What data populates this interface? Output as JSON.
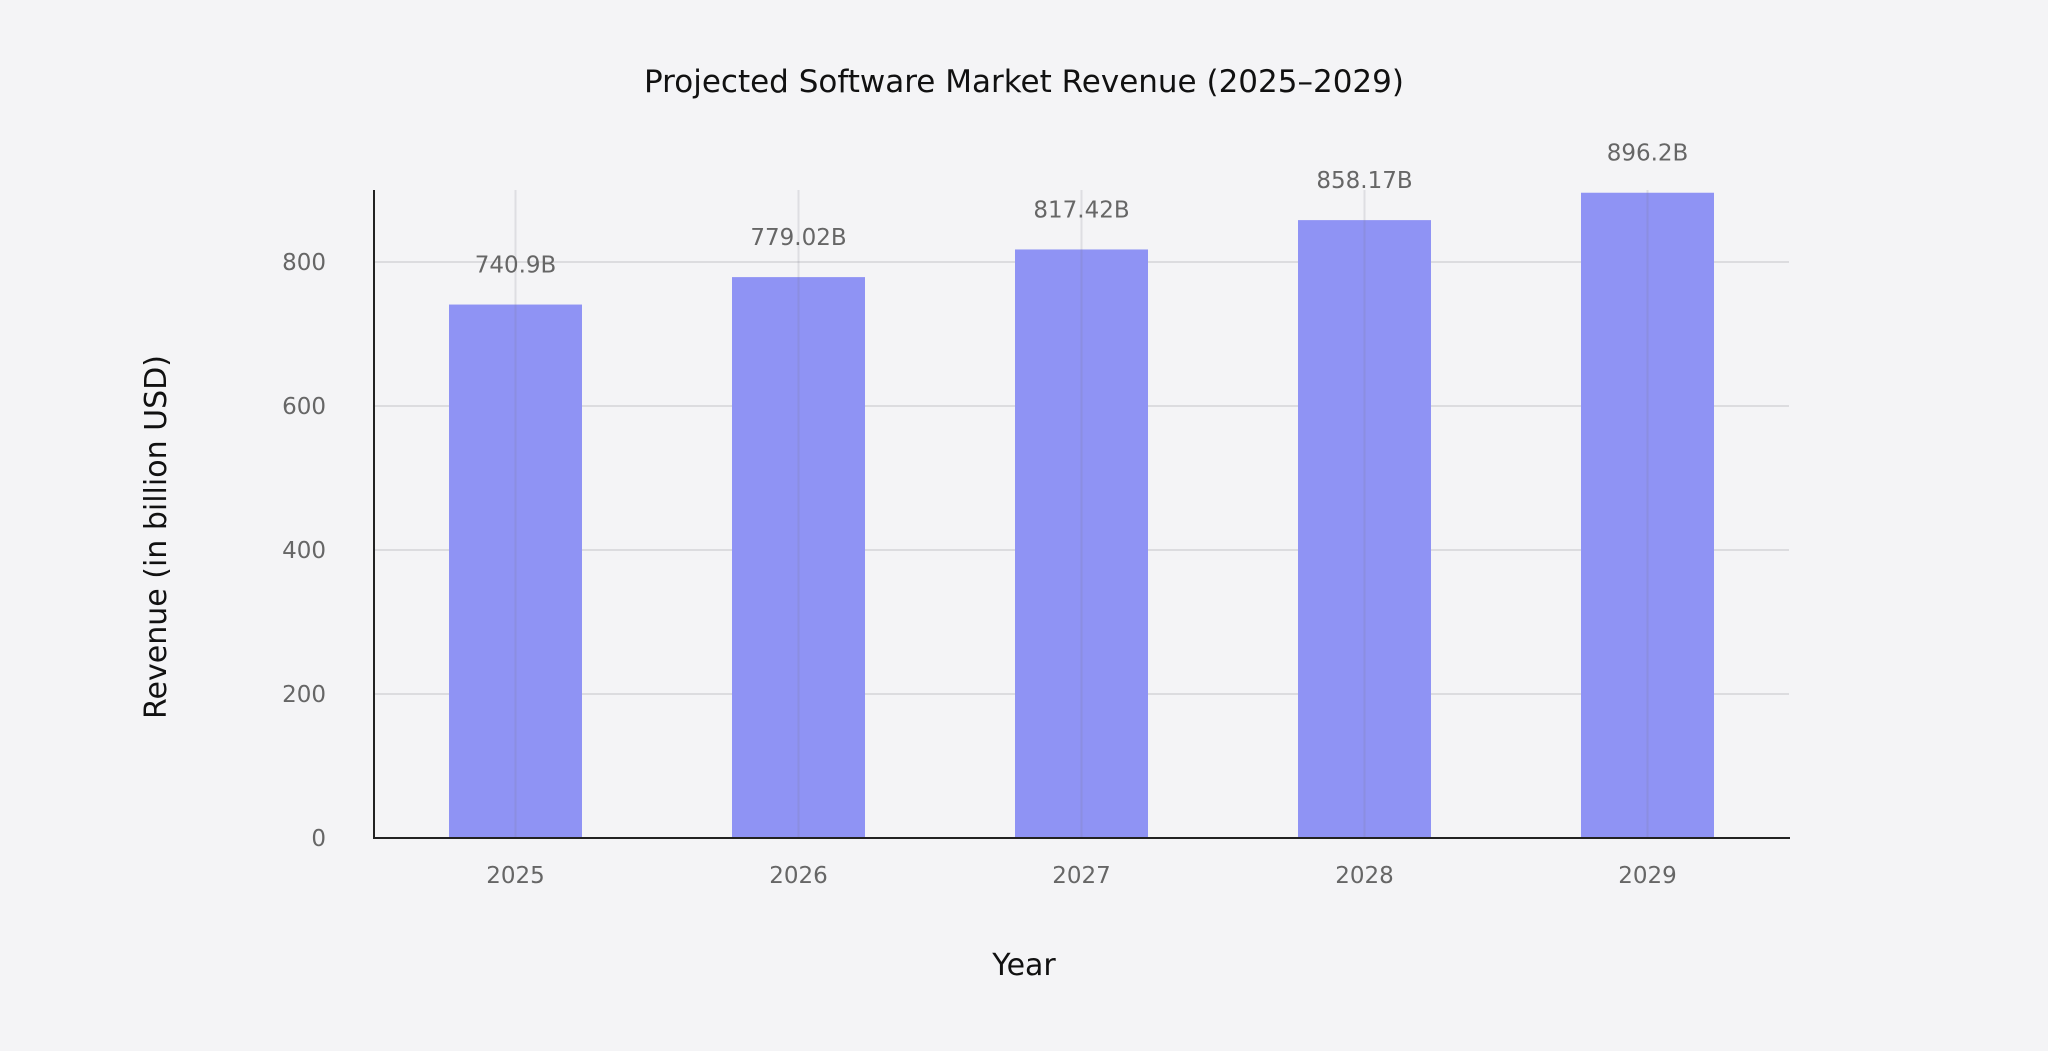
{
  "chart_data": {
    "type": "bar",
    "title": "Projected Software Market Revenue (2025–2029)",
    "xlabel": "Year",
    "ylabel": "Revenue (in billion USD)",
    "categories": [
      "2025",
      "2026",
      "2027",
      "2028",
      "2029"
    ],
    "values": [
      740.9,
      779.02,
      817.42,
      858.17,
      896.2
    ],
    "data_labels": [
      "740.9B",
      "779.02B",
      "817.42B",
      "858.17B",
      "896.2B"
    ],
    "yticks": [
      "0",
      "200",
      "400",
      "600",
      "800"
    ],
    "ylim": [
      0,
      900
    ],
    "grid": true,
    "bar_color": "#8f93f4",
    "background": "#f4f4f6"
  }
}
